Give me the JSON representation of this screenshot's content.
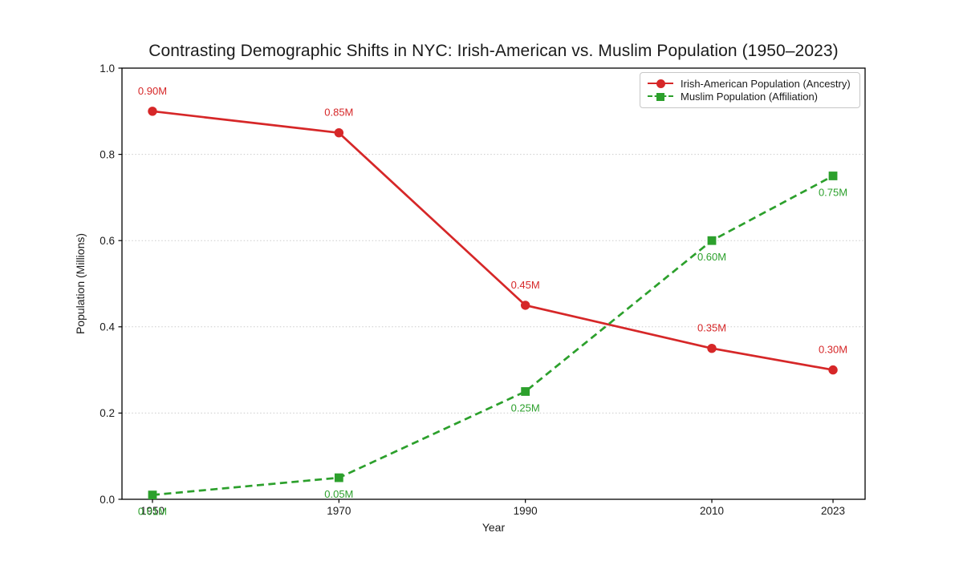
{
  "chart_data": {
    "type": "line",
    "title": "Contrasting Demographic Shifts in NYC: Irish-American vs. Muslim Population (1950–2023)",
    "xlabel": "Year",
    "ylabel": "Population (Millions)",
    "x": [
      1950,
      1970,
      1990,
      2010,
      2023
    ],
    "x_tick_labels": [
      "1950",
      "1970",
      "1990",
      "2010",
      "2023"
    ],
    "y_ticks": [
      0.0,
      0.2,
      0.4,
      0.6,
      0.8,
      1.0
    ],
    "y_tick_labels": [
      "0.0",
      "0.2",
      "0.4",
      "0.6",
      "0.8",
      "1.0"
    ],
    "xlim": [
      1946.73,
      2026.44
    ],
    "ylim": [
      0.0,
      1.0
    ],
    "grid": "horizontal-dotted",
    "grid_color": "#cbcbcb",
    "axis_color": "#000000",
    "text_color": "#1b1b1b",
    "legend_position": "upper-right",
    "series": [
      {
        "name": "Irish-American Population (Ancestry)",
        "color": "#d62728",
        "line_style": "solid",
        "marker": "circle",
        "values": [
          0.9,
          0.85,
          0.45,
          0.35,
          0.3
        ],
        "labels": [
          "0.90M",
          "0.85M",
          "0.45M",
          "0.35M",
          "0.30M"
        ],
        "label_position": "above"
      },
      {
        "name": "Muslim Population (Affiliation)",
        "color": "#2ca02c",
        "line_style": "dashed",
        "marker": "square",
        "values": [
          0.01,
          0.05,
          0.25,
          0.6,
          0.75
        ],
        "labels": [
          "0.01M",
          "0.05M",
          "0.25M",
          "0.60M",
          "0.75M"
        ],
        "label_position": "below"
      }
    ]
  }
}
